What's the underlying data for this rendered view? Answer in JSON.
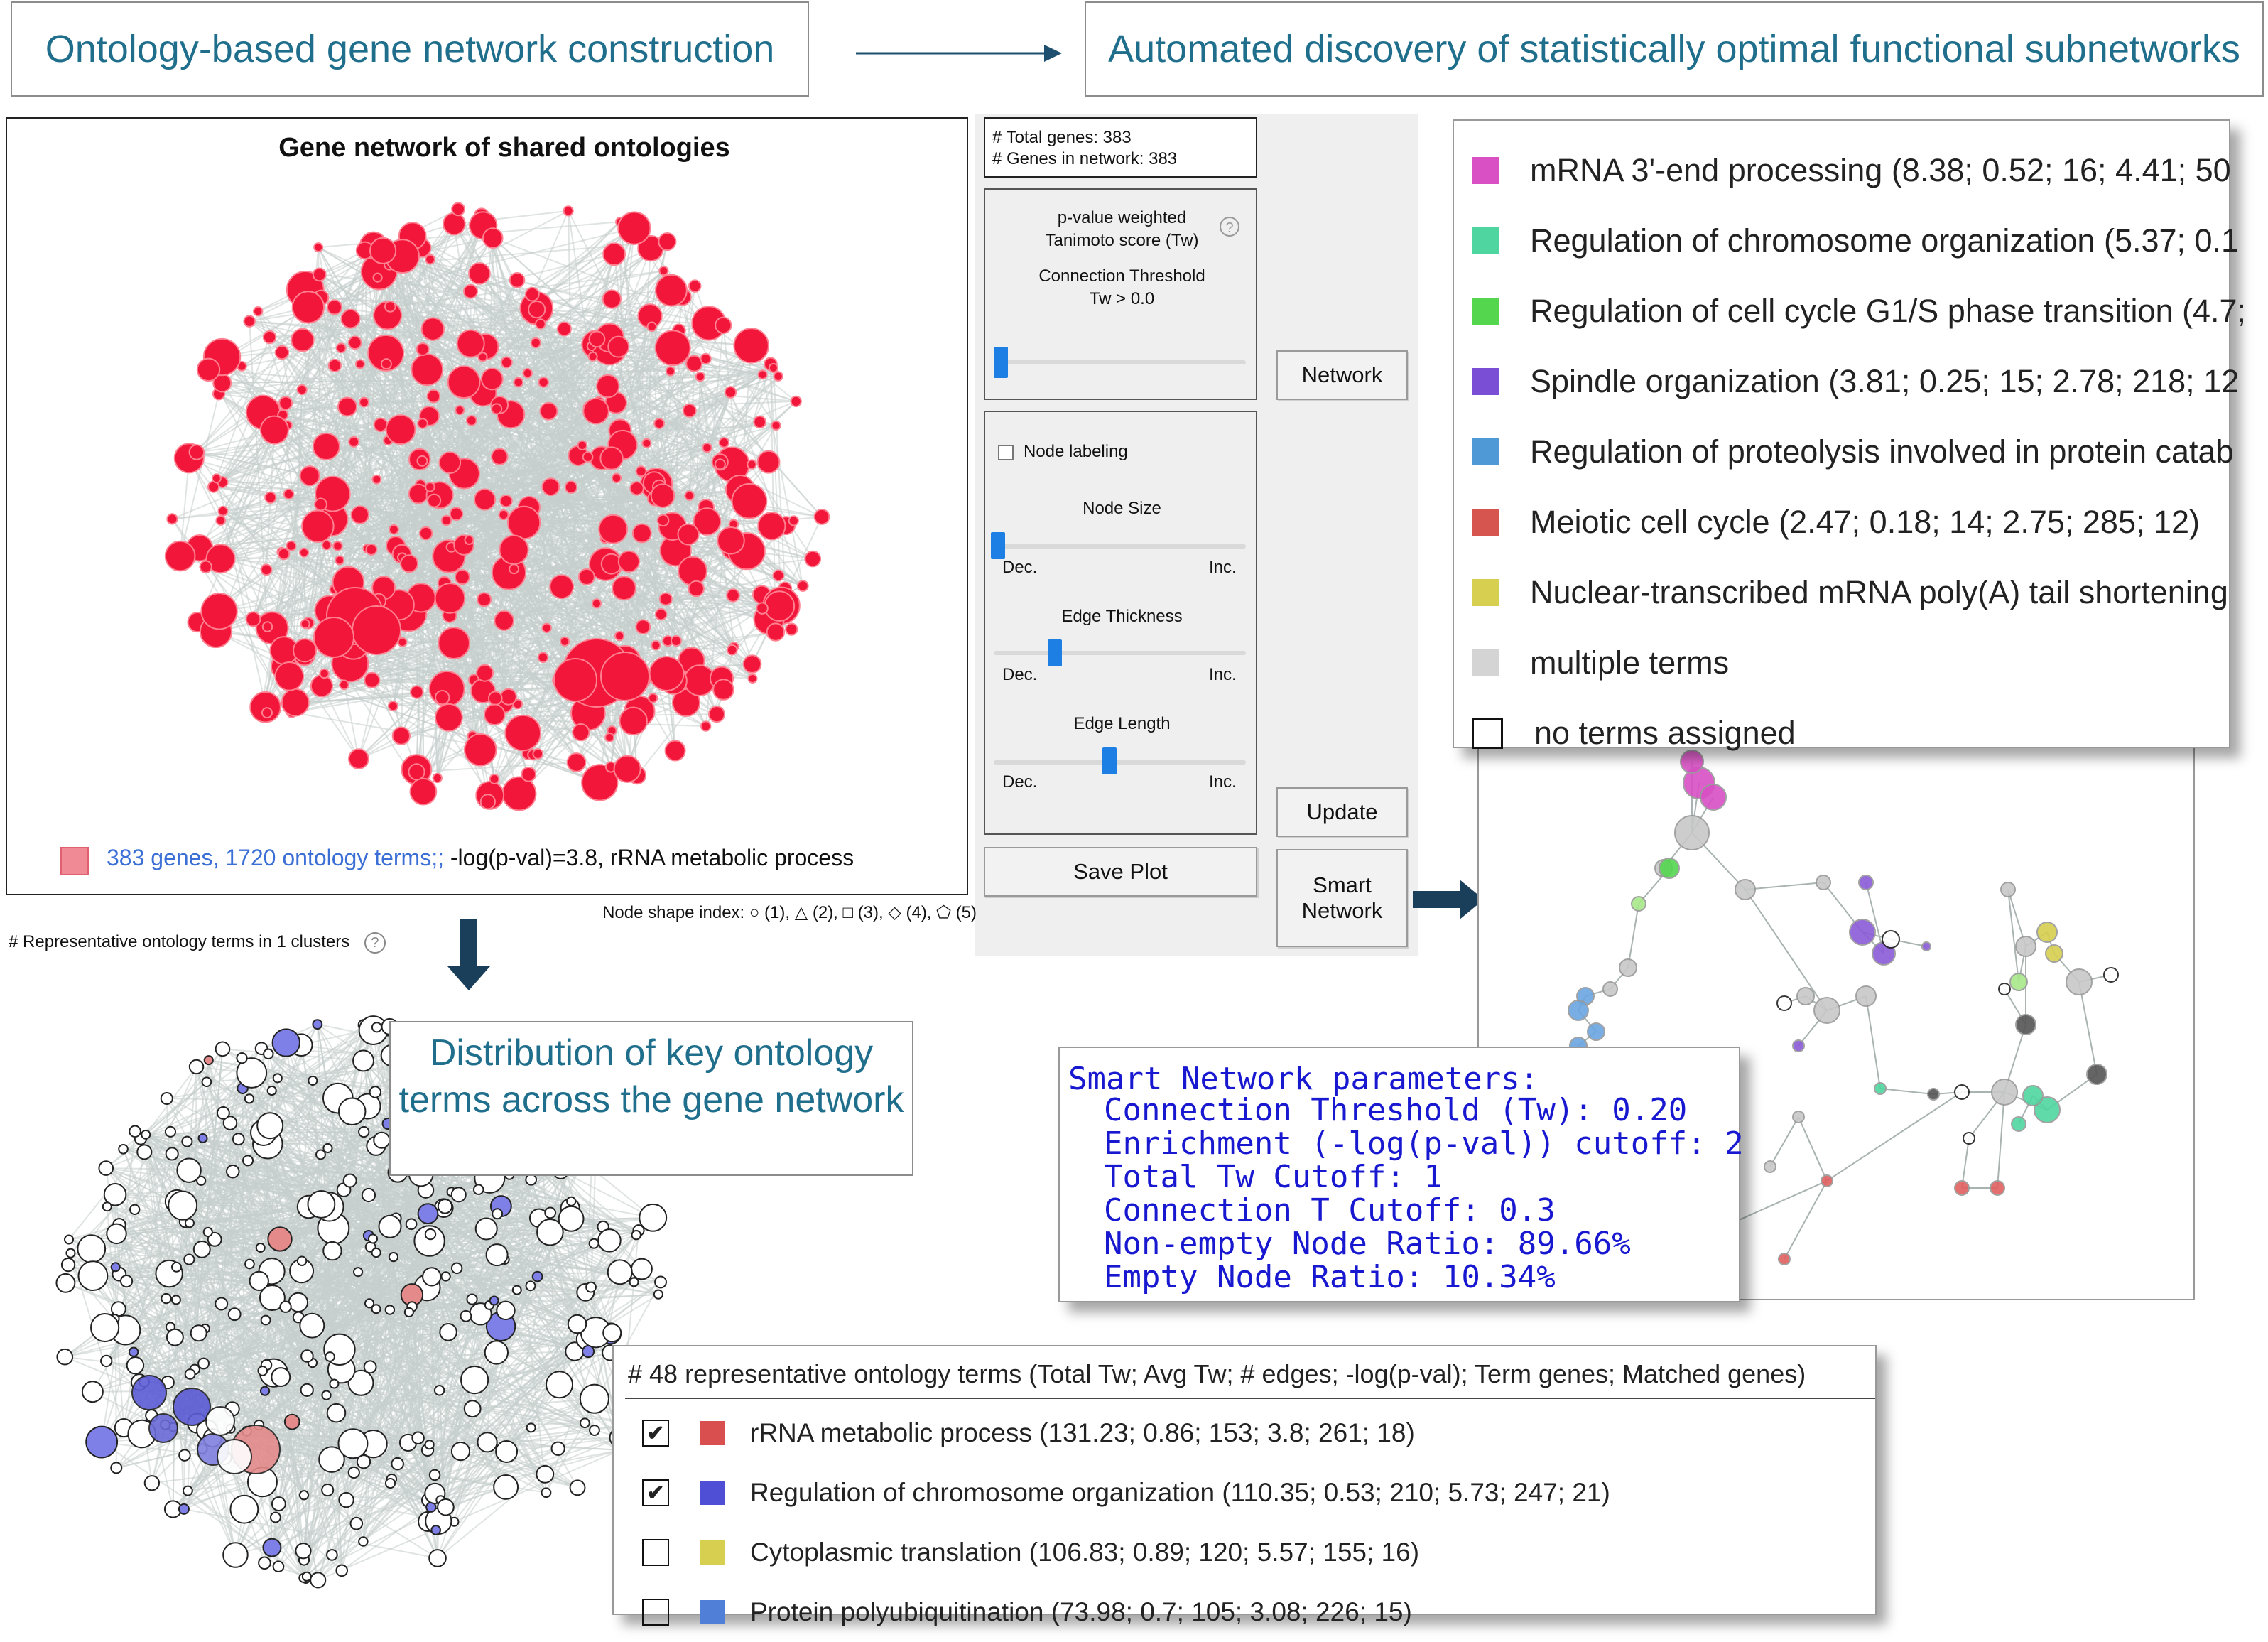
{
  "header": {
    "left_title": "Ontology-based gene network construction",
    "right_title": "Automated discovery of statistically optimal functional subnetworks"
  },
  "network_panel": {
    "title": "Gene network of shared ontologies",
    "summary_prefix": "383 genes, 1720 ontology terms;;",
    "summary_suffix": " -log(p-val)=3.8, rRNA metabolic process",
    "node_shape_index": "Node shape index: ○ (1), △ (2), □ (3), ◇ (4), ⬠ (5)",
    "clusters_label": "# Representative ontology terms in 1 clusters",
    "colors": {
      "node": "#f2173a",
      "edge": "#c6cfcd",
      "summary_text": "#3b6fd6"
    }
  },
  "controls": {
    "total_genes": "# Total genes: 383",
    "genes_in_network": "# Genes in network: 383",
    "score_label_1": "p-value weighted",
    "score_label_2": "Tanimoto score (Tw)",
    "threshold_label": "Connection Threshold",
    "threshold_value": "Tw > 0.0",
    "node_labeling": "Node labeling",
    "node_size": "Node Size",
    "edge_thickness": "Edge Thickness",
    "edge_length": "Edge Length",
    "dec": "Dec.",
    "inc": "Inc.",
    "network_button": "Network",
    "update_button": "Update",
    "save_plot_button": "Save Plot",
    "smart_network_button_1": "Smart",
    "smart_network_button_2": "Network",
    "threshold_slider_fraction": 0.0,
    "node_size_fraction": 0.0,
    "edge_thickness_fraction": 0.24,
    "edge_length_fraction": 0.47
  },
  "legend": {
    "items": [
      {
        "color": "#d94fc4",
        "label": "mRNA 3'-end processing (8.38; 0.52; 16; 4.41; 50"
      },
      {
        "color": "#4fd6a0",
        "label": "Regulation of chromosome organization (5.37; 0.1"
      },
      {
        "color": "#55d64f",
        "label": "Regulation of cell cycle G1/S phase transition (4.7;"
      },
      {
        "color": "#7a4fd6",
        "label": "Spindle organization (3.81; 0.25; 15; 2.78; 218; 12"
      },
      {
        "color": "#4f9ad6",
        "label": "Regulation of proteolysis involved in protein catab"
      },
      {
        "color": "#d6554f",
        "label": "Meiotic cell cycle (2.47; 0.18; 14; 2.75; 285; 12)"
      },
      {
        "color": "#d6cf4f",
        "label": "Nuclear-transcribed mRNA poly(A) tail shortening"
      },
      {
        "color": "#d4d4d4",
        "label": "multiple terms"
      },
      {
        "color": "#ffffff",
        "label": "no terms assigned"
      }
    ]
  },
  "distribution_label": "Distribution of key ontology terms across the gene network",
  "smart_params": {
    "title": "Smart Network parameters:",
    "lines": [
      "Connection Threshold (Tw): 0.20",
      "Enrichment (-log(p-val)) cutoff: 2",
      "Total Tw Cutoff: 1",
      "Connection T Cutoff: 0.3",
      "Non-empty Node Ratio: 89.66%",
      "Empty Node Ratio: 10.34%"
    ]
  },
  "terms_panel": {
    "header": "# 48 representative ontology terms (Total Tw; Avg Tw; # edges; -log(p-val); Term genes; Matched genes)",
    "rows": [
      {
        "checked": true,
        "check_mark": "✔",
        "color": "#d94f4f",
        "label": "rRNA metabolic process (131.23; 0.86; 153; 3.8; 261; 18)"
      },
      {
        "checked": true,
        "check_mark": "✔",
        "color": "#4f4fd6",
        "label": "Regulation of chromosome organization (110.35; 0.53; 210; 5.73; 247; 21)"
      },
      {
        "checked": false,
        "check_mark": "",
        "color": "#d6cf4f",
        "label": "Cytoplasmic translation (106.83; 0.89; 120; 5.57; 155; 16)"
      },
      {
        "checked": false,
        "check_mark": "",
        "color": "#4f7fd6",
        "label": "Protein polyubiquitination (73.98; 0.7; 105; 3.08; 226; 15)"
      }
    ]
  }
}
